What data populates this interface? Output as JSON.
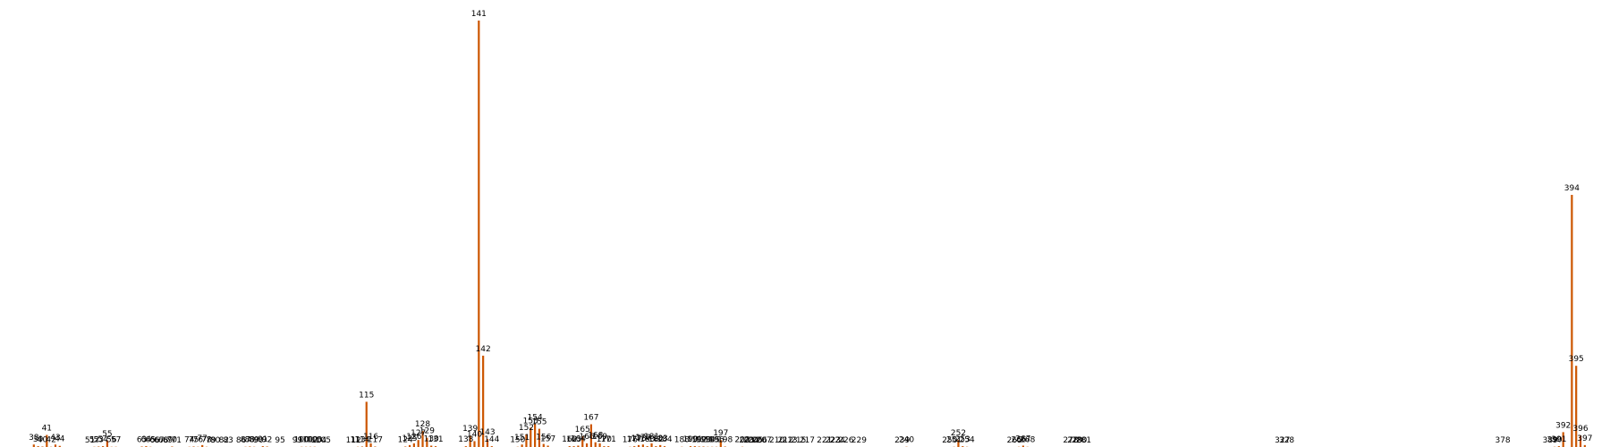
{
  "chart_data": {
    "type": "bar",
    "title": "",
    "xlabel": "",
    "ylabel": "",
    "color": "#cc5500",
    "x_range": [
      31,
      402
    ],
    "y_range": [
      0,
      40
    ],
    "grid": false,
    "legend": "none",
    "bars": [
      {
        "x": 38,
        "v": 0.3,
        "label": "38"
      },
      {
        "x": 39,
        "v": 0.15,
        "label": "39"
      },
      {
        "x": 40,
        "v": 0.12,
        "label": "40"
      },
      {
        "x": 41,
        "v": 1.15,
        "label": "41"
      },
      {
        "x": 42,
        "v": 0.1,
        "label": "42"
      },
      {
        "x": 43,
        "v": 0.3,
        "label": "43"
      },
      {
        "x": 44,
        "v": 0.18,
        "label": "44"
      },
      {
        "x": 51,
        "v": 0.08,
        "label": "51"
      },
      {
        "x": 52,
        "v": 0.1,
        "label": "52"
      },
      {
        "x": 53,
        "v": 0.12,
        "label": "53"
      },
      {
        "x": 54,
        "v": 0.15,
        "label": "54"
      },
      {
        "x": 55,
        "v": 0.65,
        "label": "55"
      },
      {
        "x": 56,
        "v": 0.1,
        "label": "56"
      },
      {
        "x": 57,
        "v": 0.1,
        "label": "57"
      },
      {
        "x": 63,
        "v": 0.12,
        "label": "63"
      },
      {
        "x": 64,
        "v": 0.15,
        "label": "64"
      },
      {
        "x": 65,
        "v": 0.1,
        "label": "65"
      },
      {
        "x": 66,
        "v": 0.08,
        "label": "66"
      },
      {
        "x": 67,
        "v": 0.08,
        "label": "67"
      },
      {
        "x": 68,
        "v": 0.08,
        "label": "68"
      },
      {
        "x": 69,
        "v": 0.08,
        "label": "69"
      },
      {
        "x": 70,
        "v": 0.12,
        "label": "70"
      },
      {
        "x": 71,
        "v": 0.08,
        "label": "71"
      },
      {
        "x": 74,
        "v": 0.1,
        "label": "74"
      },
      {
        "x": 75,
        "v": 0.12,
        "label": "75"
      },
      {
        "x": 76,
        "v": 0.1,
        "label": "76"
      },
      {
        "x": 77,
        "v": 0.25,
        "label": "77"
      },
      {
        "x": 78,
        "v": 0.1,
        "label": "78"
      },
      {
        "x": 79,
        "v": 0.08,
        "label": "79"
      },
      {
        "x": 80,
        "v": 0.08,
        "label": "80"
      },
      {
        "x": 82,
        "v": 0.08,
        "label": "82"
      },
      {
        "x": 83,
        "v": 0.08,
        "label": "83"
      },
      {
        "x": 86,
        "v": 0.08,
        "label": "86"
      },
      {
        "x": 87,
        "v": 0.1,
        "label": "87"
      },
      {
        "x": 88,
        "v": 0.12,
        "label": "88"
      },
      {
        "x": 89,
        "v": 0.1,
        "label": "89"
      },
      {
        "x": 90,
        "v": 0.08,
        "label": "90"
      },
      {
        "x": 91,
        "v": 0.15,
        "label": "91"
      },
      {
        "x": 92,
        "v": 0.12,
        "label": "92"
      },
      {
        "x": 95,
        "v": 0.05,
        "label": "95"
      },
      {
        "x": 99,
        "v": 0.08,
        "label": "99"
      },
      {
        "x": 100,
        "v": 0.1,
        "label": "100"
      },
      {
        "x": 101,
        "v": 0.1,
        "label": "101"
      },
      {
        "x": 102,
        "v": 0.1,
        "label": "102"
      },
      {
        "x": 103,
        "v": 0.1,
        "label": "103"
      },
      {
        "x": 104,
        "v": 0.08,
        "label": "104"
      },
      {
        "x": 105,
        "v": 0.08,
        "label": "105"
      },
      {
        "x": 112,
        "v": 0.08,
        "label": "112"
      },
      {
        "x": 113,
        "v": 0.1,
        "label": "113"
      },
      {
        "x": 114,
        "v": 0.12,
        "label": "114"
      },
      {
        "x": 115,
        "v": 4.1,
        "label": "115"
      },
      {
        "x": 116,
        "v": 0.4,
        "label": "116"
      },
      {
        "x": 117,
        "v": 0.12,
        "label": "117"
      },
      {
        "x": 124,
        "v": 0.12,
        "label": "124"
      },
      {
        "x": 125,
        "v": 0.25,
        "label": "125"
      },
      {
        "x": 126,
        "v": 0.4,
        "label": "126"
      },
      {
        "x": 127,
        "v": 0.7,
        "label": "127"
      },
      {
        "x": 128,
        "v": 1.5,
        "label": "128"
      },
      {
        "x": 129,
        "v": 0.9,
        "label": "129"
      },
      {
        "x": 130,
        "v": 0.2,
        "label": "130"
      },
      {
        "x": 131,
        "v": 0.15,
        "label": "131"
      },
      {
        "x": 138,
        "v": 0.15,
        "label": "138"
      },
      {
        "x": 139,
        "v": 1.1,
        "label": "139"
      },
      {
        "x": 140,
        "v": 0.6,
        "label": "140"
      },
      {
        "x": 141,
        "v": 38.0,
        "label": "141"
      },
      {
        "x": 142,
        "v": 8.2,
        "label": "142"
      },
      {
        "x": 143,
        "v": 0.8,
        "label": "143"
      },
      {
        "x": 144,
        "v": 0.15,
        "label": "144"
      },
      {
        "x": 150,
        "v": 0.1,
        "label": "150"
      },
      {
        "x": 151,
        "v": 0.3,
        "label": "151"
      },
      {
        "x": 152,
        "v": 1.2,
        "label": "152"
      },
      {
        "x": 153,
        "v": 1.8,
        "label": "153"
      },
      {
        "x": 154,
        "v": 2.1,
        "label": "154"
      },
      {
        "x": 155,
        "v": 1.7,
        "label": "155"
      },
      {
        "x": 156,
        "v": 0.35,
        "label": "156"
      },
      {
        "x": 157,
        "v": 0.2,
        "label": "157"
      },
      {
        "x": 162,
        "v": 0.15,
        "label": "162"
      },
      {
        "x": 163,
        "v": 0.15,
        "label": "163"
      },
      {
        "x": 164,
        "v": 0.2,
        "label": "164"
      },
      {
        "x": 165,
        "v": 1.05,
        "label": "165"
      },
      {
        "x": 166,
        "v": 0.4,
        "label": "166"
      },
      {
        "x": 167,
        "v": 2.1,
        "label": "167"
      },
      {
        "x": 168,
        "v": 0.5,
        "label": "168"
      },
      {
        "x": 169,
        "v": 0.4,
        "label": "169"
      },
      {
        "x": 170,
        "v": 0.15,
        "label": "170"
      },
      {
        "x": 171,
        "v": 0.15,
        "label": "171"
      },
      {
        "x": 176,
        "v": 0.1,
        "label": "176"
      },
      {
        "x": 177,
        "v": 0.15,
        "label": "177"
      },
      {
        "x": 178,
        "v": 0.25,
        "label": "178"
      },
      {
        "x": 179,
        "v": 0.3,
        "label": "179"
      },
      {
        "x": 180,
        "v": 0.15,
        "label": "180"
      },
      {
        "x": 181,
        "v": 0.4,
        "label": "181"
      },
      {
        "x": 182,
        "v": 0.15,
        "label": "182"
      },
      {
        "x": 183,
        "v": 0.25,
        "label": "183"
      },
      {
        "x": 184,
        "v": 0.15,
        "label": "184"
      },
      {
        "x": 188,
        "v": 0.1,
        "label": "188"
      },
      {
        "x": 190,
        "v": 0.15,
        "label": "190"
      },
      {
        "x": 191,
        "v": 0.15,
        "label": "191"
      },
      {
        "x": 192,
        "v": 0.12,
        "label": "192"
      },
      {
        "x": 193,
        "v": 0.12,
        "label": "193"
      },
      {
        "x": 194,
        "v": 0.1,
        "label": "194"
      },
      {
        "x": 195,
        "v": 0.1,
        "label": "195"
      },
      {
        "x": 196,
        "v": 0.1,
        "label": "196"
      },
      {
        "x": 197,
        "v": 0.7,
        "label": "197"
      },
      {
        "x": 198,
        "v": 0.12,
        "label": "198"
      },
      {
        "x": 202,
        "v": 0.1,
        "label": "202"
      },
      {
        "x": 203,
        "v": 0.08,
        "label": "203"
      },
      {
        "x": 204,
        "v": 0.08,
        "label": "204"
      },
      {
        "x": 205,
        "v": 0.08,
        "label": "205"
      },
      {
        "x": 206,
        "v": 0.08,
        "label": "206"
      },
      {
        "x": 207,
        "v": 0.05,
        "label": "207"
      },
      {
        "x": 210,
        "v": 0.05,
        "label": "210"
      },
      {
        "x": 212,
        "v": 0.05,
        "label": "212"
      },
      {
        "x": 213,
        "v": 0.05,
        "label": "213"
      },
      {
        "x": 215,
        "v": 0.05,
        "label": "215"
      },
      {
        "x": 217,
        "v": 0.05,
        "label": "217"
      },
      {
        "x": 221,
        "v": 0.05,
        "label": "221"
      },
      {
        "x": 223,
        "v": 0.05,
        "label": "223"
      },
      {
        "x": 224,
        "v": 0.05,
        "label": "224"
      },
      {
        "x": 226,
        "v": 0.05,
        "label": "226"
      },
      {
        "x": 229,
        "v": 0.05,
        "label": "229"
      },
      {
        "x": 239,
        "v": 0.08,
        "label": "239"
      },
      {
        "x": 240,
        "v": 0.1,
        "label": "240"
      },
      {
        "x": 250,
        "v": 0.08,
        "label": "250"
      },
      {
        "x": 251,
        "v": 0.1,
        "label": "251"
      },
      {
        "x": 252,
        "v": 0.7,
        "label": "252"
      },
      {
        "x": 253,
        "v": 0.15,
        "label": "253"
      },
      {
        "x": 254,
        "v": 0.1,
        "label": "254"
      },
      {
        "x": 265,
        "v": 0.08,
        "label": "265"
      },
      {
        "x": 266,
        "v": 0.1,
        "label": "266"
      },
      {
        "x": 267,
        "v": 0.2,
        "label": "267"
      },
      {
        "x": 268,
        "v": 0.1,
        "label": "268"
      },
      {
        "x": 278,
        "v": 0.05,
        "label": "278"
      },
      {
        "x": 279,
        "v": 0.05,
        "label": "279"
      },
      {
        "x": 280,
        "v": 0.05,
        "label": "280"
      },
      {
        "x": 281,
        "v": 0.05,
        "label": "281"
      },
      {
        "x": 327,
        "v": 0.05,
        "label": "327"
      },
      {
        "x": 328,
        "v": 0.05,
        "label": "328"
      },
      {
        "x": 378,
        "v": 0.05,
        "label": "378"
      },
      {
        "x": 389,
        "v": 0.08,
        "label": "389"
      },
      {
        "x": 390,
        "v": 0.1,
        "label": "390"
      },
      {
        "x": 391,
        "v": 0.15,
        "label": "391"
      },
      {
        "x": 392,
        "v": 1.4,
        "label": "392"
      },
      {
        "x": 394,
        "v": 22.5,
        "label": "394"
      },
      {
        "x": 395,
        "v": 7.3,
        "label": "395"
      },
      {
        "x": 396,
        "v": 1.1,
        "label": "396"
      },
      {
        "x": 397,
        "v": 0.25,
        "label": "397"
      }
    ]
  }
}
